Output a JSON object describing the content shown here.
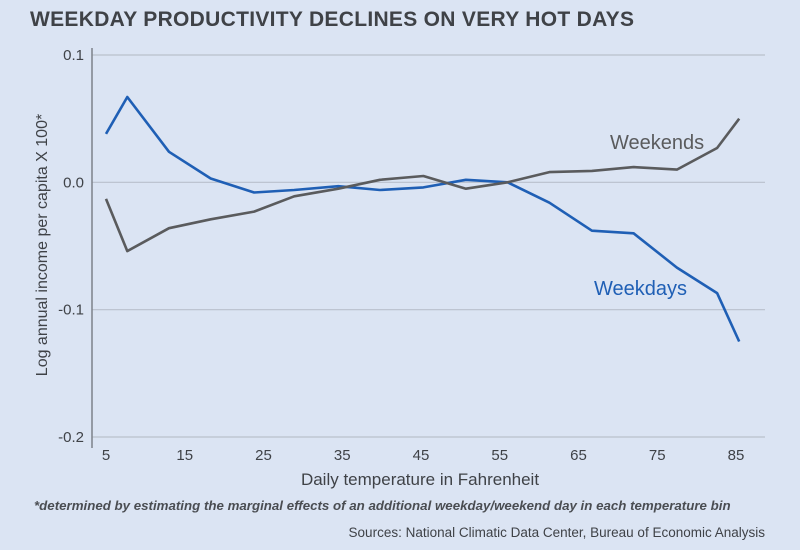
{
  "chart_data": {
    "type": "line",
    "title": "WEEKDAY PRODUCTIVITY DECLINES ON VERY HOT DAYS",
    "xlabel": "Daily temperature in Fahrenheit",
    "ylabel": "Log annual income per capita X 100*",
    "xlim": [
      5,
      85
    ],
    "ylim": [
      -0.2,
      0.1
    ],
    "x_ticks": [
      5,
      15,
      25,
      35,
      45,
      55,
      65,
      75,
      85
    ],
    "y_ticks": [
      0.1,
      0.0,
      -0.1,
      -0.2
    ],
    "y_tick_labels": [
      "0.1",
      "0.0",
      "-0.1",
      "-0.2"
    ],
    "grid": "horizontal",
    "x": [
      5,
      7.7,
      13,
      18.3,
      23.8,
      28.9,
      34.5,
      39.8,
      45.3,
      50.7,
      56,
      61.3,
      66.7,
      72,
      77.5,
      82.6,
      85.4
    ],
    "series": [
      {
        "name": "Weekdays",
        "color": "#1f5fb5",
        "values": [
          0.038,
          0.067,
          0.024,
          0.003,
          -0.008,
          -0.006,
          -0.003,
          -0.006,
          -0.004,
          0.002,
          0.0,
          -0.016,
          -0.038,
          -0.04,
          -0.067,
          -0.087,
          -0.125
        ]
      },
      {
        "name": "Weekends",
        "color": "#5a5b5d",
        "values": [
          -0.013,
          -0.054,
          -0.036,
          -0.029,
          -0.023,
          -0.011,
          -0.005,
          0.002,
          0.005,
          -0.005,
          0.0,
          0.008,
          0.009,
          0.012,
          0.01,
          0.027,
          0.05
        ]
      }
    ],
    "annotations": [
      {
        "text": "Weekends",
        "series": "Weekends"
      },
      {
        "text": "Weekdays",
        "series": "Weekdays"
      }
    ]
  },
  "footnote": "*determined by estimating the marginal effects of an additional weekday/weekend day in each temperature bin",
  "sources": "Sources: National Climatic Data Center, Bureau of Economic Analysis"
}
